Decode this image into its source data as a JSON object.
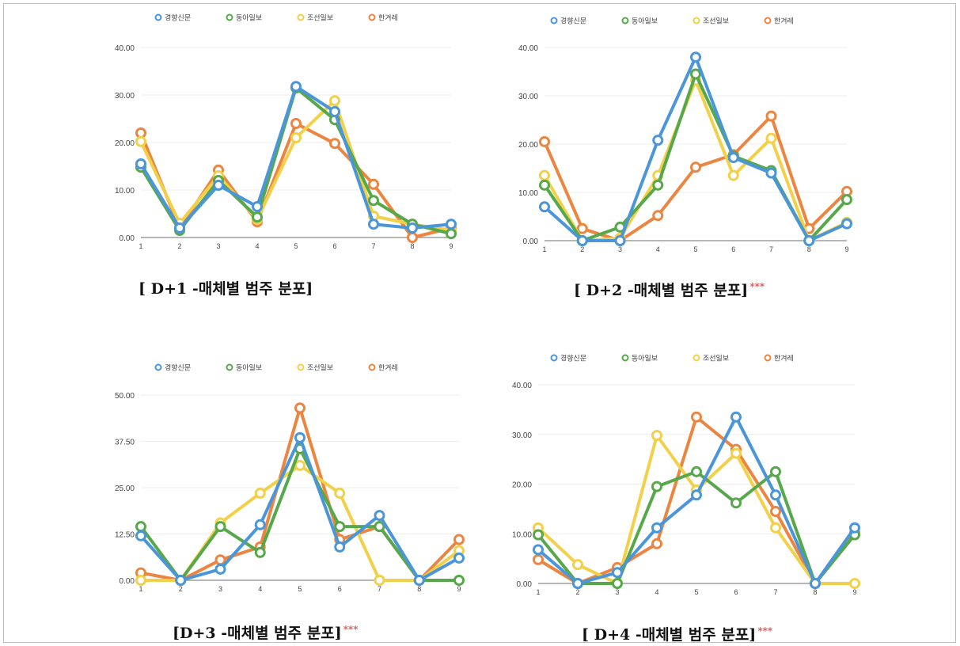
{
  "colors": {
    "경향신문": "#4a96d8",
    "동아일보": "#57a84a",
    "조선일보": "#f2d04a",
    "한겨레": "#ec8540"
  },
  "chart_data": [
    {
      "type": "line",
      "title": "[ D+1 -매체별 범주 분포]",
      "title_stars": "",
      "x": [
        1,
        2,
        3,
        4,
        5,
        6,
        7,
        8,
        9
      ],
      "ylim": [
        0,
        40
      ],
      "yticks": [
        "0.00",
        "10.00",
        "20.00",
        "30.00",
        "40.00"
      ],
      "legend_position": "top",
      "grid": true,
      "series": [
        {
          "name": "경향신문",
          "values": [
            15.5,
            2.0,
            11.0,
            6.5,
            31.8,
            26.5,
            2.8,
            2.0,
            2.8
          ]
        },
        {
          "name": "동아일보",
          "values": [
            14.8,
            1.5,
            12.0,
            4.3,
            31.5,
            24.8,
            7.8,
            2.8,
            0.8
          ]
        },
        {
          "name": "조선일보",
          "values": [
            20.2,
            3.0,
            13.0,
            3.8,
            21.0,
            28.8,
            4.5,
            2.8,
            1.5
          ]
        },
        {
          "name": "한겨레",
          "values": [
            22.0,
            2.0,
            14.2,
            3.3,
            24.0,
            19.8,
            11.2,
            0.0,
            2.0
          ]
        }
      ]
    },
    {
      "type": "line",
      "title": "[ D+2 -매체별 범주 분포]",
      "title_stars": "***",
      "x": [
        1,
        2,
        3,
        4,
        5,
        6,
        7,
        8,
        9
      ],
      "ylim": [
        0,
        40
      ],
      "yticks": [
        "0.00",
        "10.00",
        "20.00",
        "30.00",
        "40.00"
      ],
      "legend_position": "top",
      "grid": true,
      "series": [
        {
          "name": "경향신문",
          "values": [
            7.0,
            0.0,
            0.0,
            20.8,
            38.0,
            17.2,
            14.0,
            0.0,
            3.5
          ]
        },
        {
          "name": "동아일보",
          "values": [
            11.5,
            0.0,
            2.8,
            11.5,
            34.5,
            17.5,
            14.5,
            0.0,
            8.5
          ]
        },
        {
          "name": "조선일보",
          "values": [
            13.5,
            0.0,
            0.5,
            13.5,
            33.2,
            13.5,
            21.2,
            0.0,
            3.8
          ]
        },
        {
          "name": "한겨레",
          "values": [
            20.5,
            2.5,
            0.0,
            5.2,
            15.2,
            17.8,
            25.8,
            2.5,
            10.2
          ]
        }
      ]
    },
    {
      "type": "line",
      "title": "[D+3 -매체별 범주 분포]",
      "title_stars": "***",
      "x": [
        1,
        2,
        3,
        4,
        5,
        6,
        7,
        8,
        9
      ],
      "ylim": [
        0,
        50
      ],
      "yticks": [
        "0.00",
        "12.50",
        "25.00",
        "37.50",
        "50.00"
      ],
      "legend_position": "top",
      "grid": true,
      "series": [
        {
          "name": "경향신문",
          "values": [
            12.0,
            0.0,
            3.0,
            15.0,
            38.5,
            9.0,
            17.5,
            0.0,
            6.0
          ]
        },
        {
          "name": "동아일보",
          "values": [
            14.5,
            0.0,
            14.5,
            7.5,
            35.5,
            14.5,
            14.5,
            0.0,
            0.0
          ]
        },
        {
          "name": "조선일보",
          "values": [
            0.0,
            0.0,
            15.5,
            23.5,
            31.0,
            23.5,
            0.0,
            0.0,
            8.0
          ]
        },
        {
          "name": "한겨레",
          "values": [
            2.0,
            0.0,
            5.5,
            9.0,
            46.5,
            11.0,
            14.5,
            0.0,
            11.0
          ]
        }
      ]
    },
    {
      "type": "line",
      "title": "[ D+4 -매체별 범주 분포]",
      "title_stars": "***",
      "x": [
        1,
        2,
        3,
        4,
        5,
        6,
        7,
        8,
        9
      ],
      "ylim": [
        0,
        40
      ],
      "yticks": [
        "0.00",
        "10.00",
        "20.00",
        "30.00",
        "40.00"
      ],
      "legend_position": "top",
      "grid": true,
      "series": [
        {
          "name": "경향신문",
          "values": [
            6.8,
            0.0,
            2.2,
            11.2,
            17.8,
            33.5,
            17.8,
            0.0,
            11.2
          ]
        },
        {
          "name": "동아일보",
          "values": [
            9.8,
            0.0,
            0.0,
            19.5,
            22.5,
            16.2,
            22.5,
            0.0,
            9.8
          ]
        },
        {
          "name": "조선일보",
          "values": [
            11.2,
            3.8,
            0.0,
            29.8,
            18.8,
            26.2,
            11.2,
            0.0,
            0.0
          ]
        },
        {
          "name": "한겨레",
          "values": [
            4.8,
            0.0,
            3.2,
            8.0,
            33.5,
            27.0,
            14.5,
            0.0,
            10.2
          ]
        }
      ]
    }
  ]
}
